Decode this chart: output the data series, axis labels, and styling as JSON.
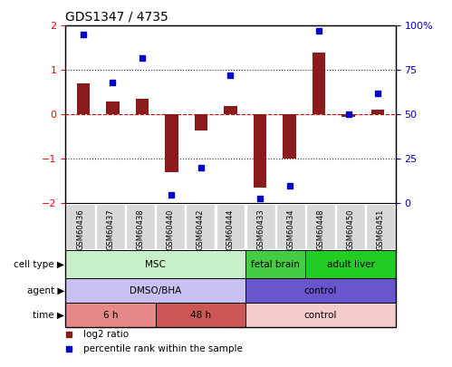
{
  "title": "GDS1347 / 4735",
  "samples": [
    "GSM60436",
    "GSM60437",
    "GSM60438",
    "GSM60440",
    "GSM60442",
    "GSM60444",
    "GSM60433",
    "GSM60434",
    "GSM60448",
    "GSM60450",
    "GSM60451"
  ],
  "log2_ratio": [
    0.7,
    0.3,
    0.35,
    -1.3,
    -0.35,
    0.2,
    -1.65,
    -1.0,
    1.4,
    -0.05,
    0.1
  ],
  "percentile_rank": [
    95,
    68,
    82,
    5,
    20,
    72,
    3,
    10,
    97,
    50,
    62
  ],
  "ylim": [
    -2,
    2
  ],
  "y2lim": [
    0,
    100
  ],
  "yticks": [
    -2,
    -1,
    0,
    1,
    2
  ],
  "y2ticks": [
    0,
    25,
    50,
    75,
    100
  ],
  "y2ticklabels": [
    "0",
    "25",
    "50",
    "75",
    "100%"
  ],
  "bar_color": "#8B1A1A",
  "dot_color": "#0000CD",
  "zero_line_color": "#CC0000",
  "dotted_line_color": "#333333",
  "sample_box_color": "#d8d8d8",
  "cell_type_groups": [
    {
      "label": "MSC",
      "start": 0,
      "end": 5,
      "color": "#c8f0c8"
    },
    {
      "label": "fetal brain",
      "start": 6,
      "end": 7,
      "color": "#44cc44"
    },
    {
      "label": "adult liver",
      "start": 8,
      "end": 10,
      "color": "#22cc22"
    }
  ],
  "agent_groups": [
    {
      "label": "DMSO/BHA",
      "start": 0,
      "end": 5,
      "color": "#c8c0f0"
    },
    {
      "label": "control",
      "start": 6,
      "end": 10,
      "color": "#6655cc"
    }
  ],
  "time_groups": [
    {
      "label": "6 h",
      "start": 0,
      "end": 2,
      "color": "#e88888"
    },
    {
      "label": "48 h",
      "start": 3,
      "end": 5,
      "color": "#cc5555"
    },
    {
      "label": "control",
      "start": 6,
      "end": 10,
      "color": "#f5cccc"
    }
  ],
  "row_labels": [
    "cell type",
    "agent",
    "time"
  ],
  "legend_items": [
    {
      "label": "log2 ratio",
      "color": "#8B1A1A"
    },
    {
      "label": "percentile rank within the sample",
      "color": "#0000CD"
    }
  ]
}
